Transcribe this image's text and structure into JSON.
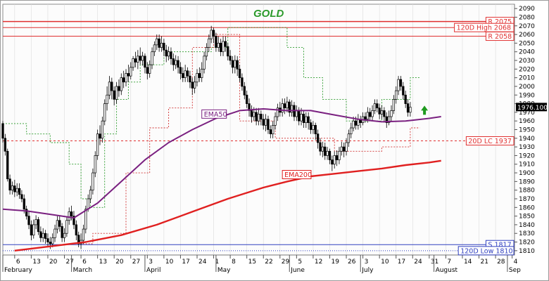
{
  "chart_data": {
    "type": "candlestick",
    "title": "GOLD",
    "ylim": [
      1805,
      2095
    ],
    "y_ticks": [
      1810,
      1820,
      1830,
      1840,
      1850,
      1860,
      1870,
      1880,
      1890,
      1900,
      1910,
      1920,
      1930,
      1940,
      1950,
      1960,
      1970,
      1980,
      1990,
      2000,
      2010,
      2020,
      2030,
      2040,
      2050,
      2060,
      2070,
      2080,
      2090
    ],
    "x_ticks": [
      {
        "label": "6",
        "day": 5
      },
      {
        "label": "13",
        "day": 12
      },
      {
        "label": "20",
        "day": 19
      },
      {
        "label": "27",
        "day": 26
      },
      {
        "label": "6",
        "day": 33
      },
      {
        "label": "13",
        "day": 40
      },
      {
        "label": "20",
        "day": 47
      },
      {
        "label": "27",
        "day": 54
      },
      {
        "label": "3",
        "day": 61
      },
      {
        "label": "10",
        "day": 68
      },
      {
        "label": "17",
        "day": 75
      },
      {
        "label": "24",
        "day": 82
      },
      {
        "label": "1",
        "day": 89
      },
      {
        "label": "8",
        "day": 96
      },
      {
        "label": "15",
        "day": 103
      },
      {
        "label": "22",
        "day": 110
      },
      {
        "label": "29",
        "day": 117
      },
      {
        "label": "5",
        "day": 124
      },
      {
        "label": "12",
        "day": 131
      },
      {
        "label": "19",
        "day": 138
      },
      {
        "label": "26",
        "day": 145
      },
      {
        "label": "3",
        "day": 152
      },
      {
        "label": "10",
        "day": 159
      },
      {
        "label": "17",
        "day": 166
      },
      {
        "label": "24",
        "day": 173
      },
      {
        "label": "31",
        "day": 180
      },
      {
        "label": "7",
        "day": 187
      },
      {
        "label": "14",
        "day": 194
      },
      {
        "label": "21",
        "day": 201
      },
      {
        "label": "28",
        "day": 208
      },
      {
        "label": "4",
        "day": 215
      }
    ],
    "months": [
      {
        "label": "February",
        "day": 0
      },
      {
        "label": "March",
        "day": 29
      },
      {
        "label": "April",
        "day": 60
      },
      {
        "label": "May",
        "day": 90
      },
      {
        "label": "June",
        "day": 121
      },
      {
        "label": "July",
        "day": 151
      },
      {
        "label": "August",
        "day": 182
      },
      {
        "label": "Sep",
        "day": 213
      }
    ],
    "last_price": "1976.100",
    "horizontal_levels": [
      {
        "label": "R 2075",
        "value": 2075,
        "color": "#e03030",
        "style": "solid",
        "lw": 1.5
      },
      {
        "label": "120D High 2068",
        "value": 2068,
        "color": "#e03030",
        "style": "solid",
        "lw": 1
      },
      {
        "label": "R 2058",
        "value": 2058,
        "color": "#e03030",
        "style": "solid",
        "lw": 1
      },
      {
        "label": "20D LC 1937",
        "value": 1937,
        "color": "#e03030",
        "style": "dashed",
        "lw": 1
      },
      {
        "label": "S 1817",
        "value": 1817,
        "color": "#3040c0",
        "style": "solid",
        "lw": 1
      },
      {
        "label": "120D Low 1810",
        "value": 1810,
        "color": "#3040c0",
        "style": "dotted",
        "lw": 1
      }
    ],
    "series": [
      {
        "name": "EMA50",
        "color": "#7a2080",
        "x": [
          0,
          10,
          20,
          30,
          40,
          50,
          60,
          70,
          80,
          90,
          100,
          110,
          120,
          130,
          140,
          150,
          160,
          170,
          180,
          185
        ],
        "y": [
          1858,
          1856,
          1852,
          1848,
          1865,
          1890,
          1915,
          1935,
          1950,
          1963,
          1972,
          1974,
          1972,
          1972,
          1967,
          1962,
          1959,
          1960,
          1963,
          1965
        ]
      },
      {
        "name": "EMA200",
        "color": "#e02020",
        "x": [
          5,
          20,
          35,
          50,
          65,
          80,
          95,
          110,
          120,
          130,
          140,
          150,
          160,
          170,
          180,
          185
        ],
        "y": [
          1810,
          1815,
          1820,
          1828,
          1840,
          1855,
          1870,
          1883,
          1890,
          1896,
          1899,
          1902,
          1905,
          1909,
          1912,
          1914
        ]
      }
    ],
    "candles": [
      [
        0,
        1957,
        1940,
        1960,
        1935
      ],
      [
        1,
        1940,
        1925,
        1945,
        1920
      ],
      [
        2,
        1925,
        1893,
        1928,
        1890
      ],
      [
        3,
        1893,
        1880,
        1898,
        1875
      ],
      [
        4,
        1880,
        1885,
        1890,
        1875
      ],
      [
        5,
        1885,
        1878,
        1892,
        1872
      ],
      [
        6,
        1878,
        1882,
        1888,
        1873
      ],
      [
        7,
        1882,
        1875,
        1888,
        1870
      ],
      [
        8,
        1875,
        1870,
        1880,
        1866
      ],
      [
        9,
        1870,
        1858,
        1875,
        1853
      ],
      [
        10,
        1858,
        1850,
        1862,
        1846
      ],
      [
        11,
        1850,
        1840,
        1855,
        1835
      ],
      [
        12,
        1840,
        1828,
        1845,
        1822
      ],
      [
        13,
        1828,
        1840,
        1846,
        1824
      ],
      [
        14,
        1840,
        1846,
        1851,
        1835
      ],
      [
        15,
        1846,
        1832,
        1849,
        1828
      ],
      [
        16,
        1832,
        1825,
        1838,
        1820
      ],
      [
        17,
        1825,
        1830,
        1836,
        1820
      ],
      [
        18,
        1830,
        1824,
        1834,
        1818
      ],
      [
        19,
        1824,
        1820,
        1830,
        1815
      ],
      [
        20,
        1820,
        1818,
        1826,
        1812
      ],
      [
        21,
        1818,
        1825,
        1830,
        1814
      ],
      [
        22,
        1825,
        1835,
        1840,
        1820
      ],
      [
        23,
        1835,
        1845,
        1850,
        1830
      ],
      [
        24,
        1845,
        1838,
        1850,
        1832
      ],
      [
        25,
        1838,
        1825,
        1842,
        1820
      ],
      [
        26,
        1825,
        1830,
        1836,
        1820
      ],
      [
        27,
        1830,
        1845,
        1850,
        1826
      ],
      [
        28,
        1845,
        1855,
        1860,
        1840
      ],
      [
        29,
        1855,
        1850,
        1862,
        1845
      ],
      [
        30,
        1850,
        1840,
        1856,
        1835
      ],
      [
        31,
        1840,
        1828,
        1845,
        1822
      ],
      [
        32,
        1828,
        1818,
        1832,
        1814
      ],
      [
        33,
        1818,
        1822,
        1830,
        1812
      ],
      [
        34,
        1822,
        1835,
        1840,
        1818
      ],
      [
        35,
        1835,
        1858,
        1862,
        1830
      ],
      [
        36,
        1858,
        1870,
        1875,
        1855
      ],
      [
        37,
        1870,
        1880,
        1885,
        1865
      ],
      [
        38,
        1880,
        1900,
        1905,
        1875
      ],
      [
        39,
        1900,
        1920,
        1925,
        1895
      ],
      [
        40,
        1920,
        1945,
        1950,
        1915
      ],
      [
        41,
        1945,
        1940,
        1955,
        1932
      ],
      [
        42,
        1940,
        1960,
        1965,
        1935
      ],
      [
        43,
        1960,
        1980,
        1985,
        1955
      ],
      [
        44,
        1980,
        1990,
        2000,
        1972
      ],
      [
        45,
        1990,
        2005,
        2012,
        1985
      ],
      [
        46,
        2005,
        1995,
        2010,
        1985
      ],
      [
        47,
        1995,
        1985,
        2000,
        1978
      ],
      [
        48,
        1985,
        2000,
        2005,
        1980
      ],
      [
        49,
        2000,
        1995,
        2008,
        1988
      ],
      [
        50,
        1995,
        2010,
        2015,
        1990
      ],
      [
        51,
        2010,
        2005,
        2018,
        1998
      ],
      [
        52,
        2005,
        2015,
        2020,
        2000
      ],
      [
        53,
        2015,
        2012,
        2025,
        2005
      ],
      [
        54,
        2012,
        2022,
        2028,
        2008
      ],
      [
        55,
        2022,
        2032,
        2035,
        2018
      ],
      [
        56,
        2032,
        2028,
        2040,
        2022
      ],
      [
        57,
        2028,
        2035,
        2042,
        2020
      ],
      [
        58,
        2035,
        2030,
        2045,
        2025
      ],
      [
        59,
        2030,
        2035,
        2040,
        2024
      ],
      [
        60,
        2035,
        2022,
        2038,
        2015
      ],
      [
        61,
        2022,
        2015,
        2028,
        2008
      ],
      [
        62,
        2015,
        2025,
        2030,
        2010
      ],
      [
        63,
        2025,
        2040,
        2045,
        2020
      ],
      [
        64,
        2040,
        2048,
        2052,
        2035
      ],
      [
        65,
        2048,
        2055,
        2060,
        2042
      ],
      [
        66,
        2055,
        2045,
        2060,
        2040
      ],
      [
        67,
        2045,
        2050,
        2058,
        2040
      ],
      [
        68,
        2050,
        2042,
        2055,
        2035
      ],
      [
        69,
        2042,
        2035,
        2048,
        2028
      ],
      [
        70,
        2035,
        2040,
        2046,
        2030
      ],
      [
        71,
        2040,
        2032,
        2045,
        2025
      ],
      [
        72,
        2032,
        2025,
        2038,
        2018
      ],
      [
        73,
        2025,
        2030,
        2036,
        2020
      ],
      [
        74,
        2030,
        2022,
        2035,
        2015
      ],
      [
        75,
        2022,
        2015,
        2028,
        2008
      ],
      [
        76,
        2015,
        2010,
        2022,
        2005
      ],
      [
        77,
        2010,
        2018,
        2025,
        2005
      ],
      [
        78,
        2018,
        2012,
        2022,
        2005
      ],
      [
        79,
        2012,
        2005,
        2018,
        1998
      ],
      [
        80,
        2005,
        1998,
        2010,
        1990
      ],
      [
        81,
        1998,
        2005,
        2012,
        1992
      ],
      [
        82,
        2005,
        2015,
        2020,
        2000
      ],
      [
        83,
        2015,
        2010,
        2022,
        2005
      ],
      [
        84,
        2010,
        2020,
        2028,
        2005
      ],
      [
        85,
        2020,
        2035,
        2040,
        2015
      ],
      [
        86,
        2035,
        2045,
        2050,
        2030
      ],
      [
        87,
        2045,
        2055,
        2060,
        2040
      ],
      [
        88,
        2055,
        2065,
        2070,
        2050
      ],
      [
        89,
        2065,
        2058,
        2068,
        2050
      ],
      [
        90,
        2058,
        2045,
        2062,
        2040
      ],
      [
        91,
        2045,
        2050,
        2058,
        2040
      ],
      [
        92,
        2050,
        2040,
        2055,
        2035
      ],
      [
        93,
        2040,
        2052,
        2058,
        2035
      ],
      [
        94,
        2052,
        2046,
        2058,
        2040
      ],
      [
        95,
        2046,
        2035,
        2050,
        2030
      ],
      [
        96,
        2035,
        2030,
        2042,
        2025
      ],
      [
        97,
        2030,
        2022,
        2035,
        2015
      ],
      [
        98,
        2022,
        2030,
        2036,
        2015
      ],
      [
        99,
        2030,
        2020,
        2035,
        2012
      ],
      [
        100,
        2020,
        2010,
        2025,
        2005
      ],
      [
        101,
        2010,
        2000,
        2015,
        1995
      ],
      [
        102,
        2000,
        1990,
        2005,
        1985
      ],
      [
        103,
        1990,
        1980,
        1995,
        1975
      ],
      [
        104,
        1980,
        1972,
        1986,
        1965
      ],
      [
        105,
        1972,
        1965,
        1978,
        1958
      ],
      [
        106,
        1965,
        1970,
        1976,
        1960
      ],
      [
        107,
        1970,
        1960,
        1975,
        1955
      ],
      [
        108,
        1960,
        1968,
        1975,
        1955
      ],
      [
        109,
        1968,
        1962,
        1972,
        1955
      ],
      [
        110,
        1962,
        1955,
        1968,
        1950
      ],
      [
        111,
        1955,
        1962,
        1968,
        1948
      ],
      [
        112,
        1962,
        1950,
        1966,
        1945
      ],
      [
        113,
        1950,
        1945,
        1955,
        1940
      ],
      [
        114,
        1945,
        1955,
        1960,
        1940
      ],
      [
        115,
        1955,
        1965,
        1970,
        1950
      ],
      [
        116,
        1965,
        1975,
        1980,
        1960
      ],
      [
        117,
        1975,
        1970,
        1982,
        1965
      ],
      [
        118,
        1970,
        1980,
        1986,
        1965
      ],
      [
        119,
        1980,
        1975,
        1986,
        1968
      ],
      [
        120,
        1975,
        1982,
        1988,
        1970
      ],
      [
        121,
        1982,
        1970,
        1985,
        1965
      ],
      [
        122,
        1970,
        1978,
        1984,
        1965
      ],
      [
        123,
        1978,
        1965,
        1982,
        1960
      ],
      [
        124,
        1965,
        1972,
        1978,
        1960
      ],
      [
        125,
        1972,
        1960,
        1976,
        1955
      ],
      [
        126,
        1960,
        1968,
        1975,
        1955
      ],
      [
        127,
        1968,
        1958,
        1972,
        1952
      ],
      [
        128,
        1958,
        1965,
        1970,
        1952
      ],
      [
        129,
        1965,
        1958,
        1970,
        1950
      ],
      [
        130,
        1958,
        1950,
        1962,
        1945
      ],
      [
        131,
        1950,
        1955,
        1960,
        1945
      ],
      [
        132,
        1955,
        1945,
        1958,
        1938
      ],
      [
        133,
        1945,
        1935,
        1950,
        1928
      ],
      [
        134,
        1935,
        1925,
        1940,
        1920
      ],
      [
        135,
        1925,
        1930,
        1936,
        1918
      ],
      [
        136,
        1930,
        1920,
        1935,
        1915
      ],
      [
        137,
        1920,
        1925,
        1930,
        1915
      ],
      [
        138,
        1925,
        1915,
        1928,
        1910
      ],
      [
        139,
        1915,
        1910,
        1920,
        1902
      ],
      [
        140,
        1910,
        1920,
        1925,
        1905
      ],
      [
        141,
        1920,
        1915,
        1926,
        1908
      ],
      [
        142,
        1915,
        1925,
        1930,
        1910
      ],
      [
        143,
        1925,
        1930,
        1936,
        1920
      ],
      [
        144,
        1930,
        1925,
        1935,
        1918
      ],
      [
        145,
        1925,
        1935,
        1940,
        1920
      ],
      [
        146,
        1935,
        1945,
        1950,
        1930
      ],
      [
        147,
        1945,
        1952,
        1958,
        1940
      ],
      [
        148,
        1952,
        1960,
        1965,
        1948
      ],
      [
        149,
        1960,
        1955,
        1965,
        1950
      ],
      [
        150,
        1955,
        1962,
        1968,
        1950
      ],
      [
        151,
        1962,
        1958,
        1966,
        1952
      ],
      [
        152,
        1958,
        1965,
        1970,
        1955
      ],
      [
        153,
        1965,
        1962,
        1970,
        1958
      ],
      [
        154,
        1962,
        1970,
        1976,
        1958
      ],
      [
        155,
        1970,
        1965,
        1975,
        1960
      ],
      [
        156,
        1965,
        1972,
        1978,
        1960
      ],
      [
        157,
        1972,
        1980,
        1985,
        1968
      ],
      [
        158,
        1980,
        1975,
        1985,
        1970
      ],
      [
        159,
        1975,
        1968,
        1980,
        1962
      ],
      [
        160,
        1968,
        1972,
        1978,
        1962
      ],
      [
        161,
        1972,
        1965,
        1976,
        1958
      ],
      [
        162,
        1965,
        1958,
        1970,
        1952
      ],
      [
        163,
        1958,
        1965,
        1972,
        1955
      ],
      [
        164,
        1965,
        1972,
        1978,
        1960
      ],
      [
        165,
        1972,
        1985,
        1990,
        1968
      ],
      [
        166,
        1985,
        1995,
        2000,
        1980
      ],
      [
        167,
        1995,
        2008,
        2012,
        1990
      ],
      [
        168,
        2008,
        2000,
        2012,
        1995
      ],
      [
        169,
        2000,
        1990,
        2005,
        1985
      ],
      [
        170,
        1990,
        1980,
        1995,
        1975
      ],
      [
        171,
        1980,
        1970,
        1985,
        1965
      ],
      [
        172,
        1970,
        1976,
        1982,
        1965
      ]
    ],
    "annotations": [
      "EMA50",
      "EMA200"
    ]
  }
}
